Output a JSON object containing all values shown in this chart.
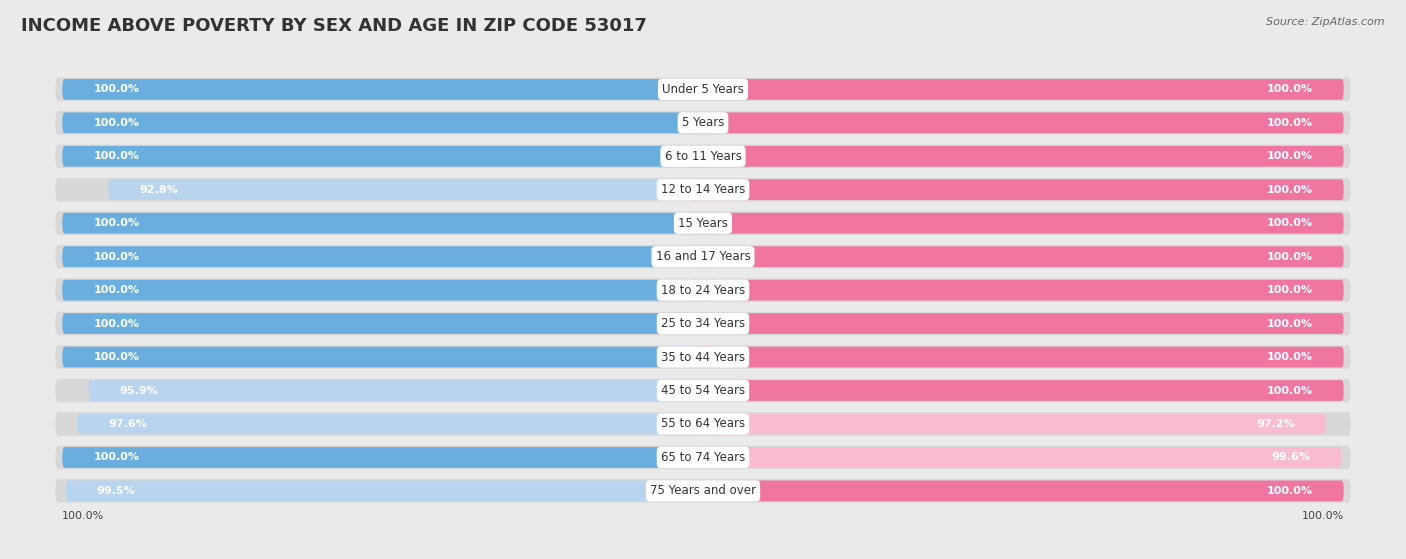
{
  "title": "INCOME ABOVE POVERTY BY SEX AND AGE IN ZIP CODE 53017",
  "source": "Source: ZipAtlas.com",
  "categories": [
    "Under 5 Years",
    "5 Years",
    "6 to 11 Years",
    "12 to 14 Years",
    "15 Years",
    "16 and 17 Years",
    "18 to 24 Years",
    "25 to 34 Years",
    "35 to 44 Years",
    "45 to 54 Years",
    "55 to 64 Years",
    "65 to 74 Years",
    "75 Years and over"
  ],
  "male_values": [
    100.0,
    100.0,
    100.0,
    92.8,
    100.0,
    100.0,
    100.0,
    100.0,
    100.0,
    95.9,
    97.6,
    100.0,
    99.5
  ],
  "female_values": [
    100.0,
    100.0,
    100.0,
    100.0,
    100.0,
    100.0,
    100.0,
    100.0,
    100.0,
    100.0,
    97.2,
    99.6,
    100.0
  ],
  "male_color_full": "#6aaee0",
  "male_color_light": "#b8d4ee",
  "female_color_full": "#f075a0",
  "female_color_light": "#f8bbd0",
  "bg_color": "#eaeaea",
  "row_bg_color": "#d8d8d8",
  "label_bg_color": "#f5f5f5",
  "title_fontsize": 13,
  "label_fontsize": 8.5,
  "value_fontsize": 8.0,
  "legend_fontsize": 9,
  "bottom_male_value": "100.0%",
  "bottom_female_value": "100.0%"
}
